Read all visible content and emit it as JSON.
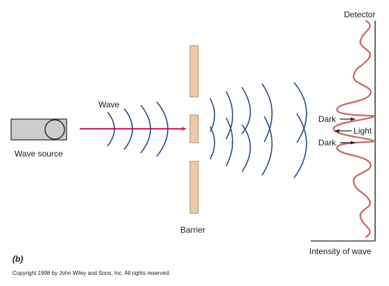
{
  "labels": {
    "detector": "Detector",
    "wave": "Wave",
    "wave_source": "Wave source",
    "barrier": "Barrier",
    "dark_upper": "Dark",
    "light": "Light",
    "dark_lower": "Dark",
    "intensity_axis": "Intensity of wave"
  },
  "panel_label": "(b)",
  "copyright": "Copyright 1998 by John Wiley and Sons, Inc.  All rights reserved.",
  "colors": {
    "wavefront": "#2b4a7e",
    "wave_arrow": "#c8266a",
    "barrier": "#f0c9a8",
    "barrier_edge": "#a07a58",
    "source_box": "#cccccc",
    "intensity_curve": "#c86e68",
    "line": "#222222"
  }
}
